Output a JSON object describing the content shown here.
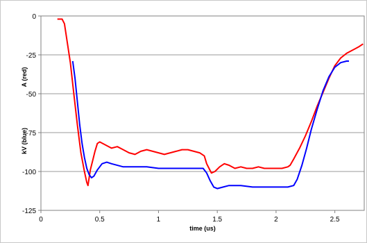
{
  "chart_data": {
    "type": "line",
    "title": "",
    "xlabel": "time (us)",
    "ylabel_upper": "A (red)",
    "ylabel_lower": "kV (blue)",
    "xlim": [
      0,
      2.75
    ],
    "ylim": [
      -125,
      0
    ],
    "x_ticks": [
      0,
      0.5,
      1,
      1.5,
      2,
      2.5
    ],
    "x_tick_labels": [
      "0",
      "0.5",
      "1",
      "1.5",
      "2",
      "2.5"
    ],
    "y_ticks": [
      0,
      -25,
      -50,
      -75,
      -100,
      -125
    ],
    "y_tick_labels": [
      "0",
      "-25",
      "-50",
      "-75",
      "-100",
      "-125"
    ],
    "grid": "horizontal",
    "legend": "none",
    "series": [
      {
        "color": "#ff0000",
        "x": [
          0.14,
          0.18,
          0.2,
          0.22,
          0.25,
          0.28,
          0.31,
          0.34,
          0.37,
          0.39,
          0.4,
          0.41,
          0.42,
          0.44,
          0.46,
          0.48,
          0.5,
          0.55,
          0.6,
          0.65,
          0.7,
          0.75,
          0.8,
          0.85,
          0.9,
          0.95,
          1.0,
          1.05,
          1.1,
          1.15,
          1.2,
          1.25,
          1.3,
          1.35,
          1.39,
          1.41,
          1.43,
          1.45,
          1.48,
          1.52,
          1.56,
          1.6,
          1.65,
          1.7,
          1.75,
          1.8,
          1.85,
          1.9,
          1.95,
          2.0,
          2.05,
          2.1,
          2.12,
          2.15,
          2.2,
          2.25,
          2.3,
          2.35,
          2.4,
          2.45,
          2.5,
          2.55,
          2.6,
          2.65,
          2.7,
          2.74
        ],
        "y": [
          -2,
          -2,
          -5,
          -15,
          -30,
          -50,
          -70,
          -88,
          -100,
          -107,
          -109,
          -104,
          -99,
          -93,
          -87,
          -82,
          -81,
          -83,
          -85,
          -84,
          -86,
          -88,
          -89,
          -87,
          -86,
          -87,
          -88,
          -89,
          -88,
          -87,
          -86,
          -86,
          -87,
          -88,
          -90,
          -95,
          -98,
          -101,
          -100,
          -97,
          -95,
          -96,
          -98,
          -97,
          -98,
          -98,
          -97,
          -98,
          -98,
          -98,
          -98,
          -97,
          -96,
          -92,
          -85,
          -77,
          -68,
          -58,
          -49,
          -40,
          -32,
          -27,
          -24,
          -22,
          -20,
          -18
        ]
      },
      {
        "color": "#0000ff",
        "x": [
          0.27,
          0.29,
          0.31,
          0.33,
          0.35,
          0.37,
          0.39,
          0.41,
          0.43,
          0.45,
          0.48,
          0.52,
          0.56,
          0.6,
          0.7,
          0.8,
          0.9,
          1.0,
          1.1,
          1.2,
          1.3,
          1.38,
          1.41,
          1.44,
          1.47,
          1.5,
          1.55,
          1.6,
          1.7,
          1.8,
          1.9,
          2.0,
          2.1,
          2.15,
          2.18,
          2.22,
          2.26,
          2.3,
          2.35,
          2.4,
          2.45,
          2.5,
          2.55,
          2.6,
          2.62
        ],
        "y": [
          -29,
          -40,
          -55,
          -70,
          -82,
          -91,
          -98,
          -102,
          -104,
          -103,
          -99,
          -95,
          -94,
          -95,
          -97,
          -97,
          -97,
          -98,
          -98,
          -98,
          -98,
          -98,
          -101,
          -106,
          -110,
          -111,
          -110,
          -109,
          -109,
          -110,
          -110,
          -110,
          -110,
          -109,
          -105,
          -96,
          -85,
          -73,
          -60,
          -48,
          -39,
          -33,
          -30,
          -29,
          -29
        ]
      }
    ]
  }
}
